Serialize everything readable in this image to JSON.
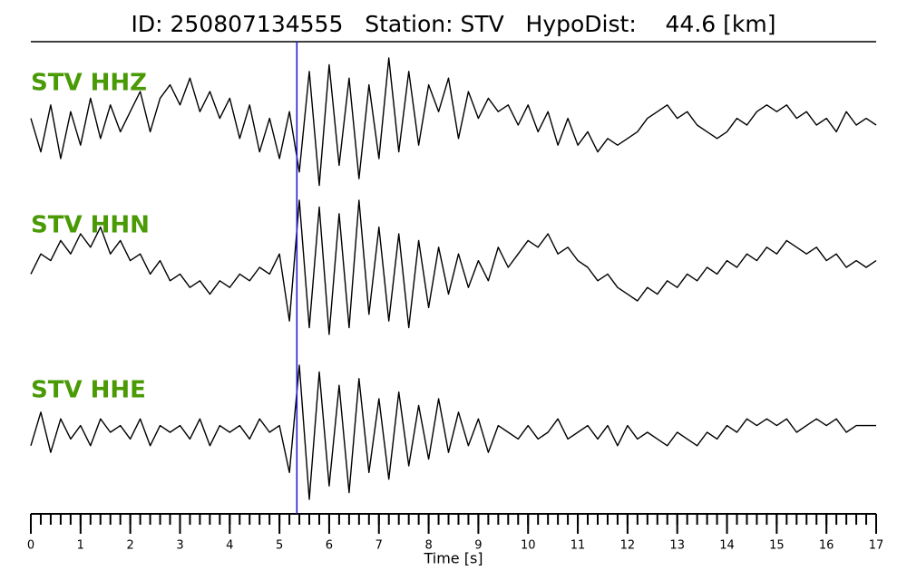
{
  "chart_data": {
    "type": "seismogram",
    "title": "ID: 250807134555   Station: STV   HypoDist:    44.6 [km]",
    "xlabel": "Time [s]",
    "xlim": [
      0,
      17
    ],
    "xticks": [
      0,
      1,
      2,
      3,
      4,
      5,
      6,
      7,
      8,
      9,
      10,
      11,
      12,
      13,
      14,
      15,
      16,
      17
    ],
    "minor_xticks": [
      0,
      0.2,
      0.4,
      0.6,
      0.8,
      1,
      1.2,
      1.4,
      1.6,
      1.8,
      2,
      2.2,
      2.4,
      2.6,
      2.8,
      3,
      3.2,
      3.4,
      3.6,
      3.8,
      4,
      4.2,
      4.4,
      4.6,
      4.8,
      5,
      5.2,
      5.4,
      5.6,
      5.8,
      6,
      6.2,
      6.4,
      6.6,
      6.8,
      7,
      7.2,
      7.4,
      7.6,
      7.8,
      8,
      8.2,
      8.4,
      8.6,
      8.8,
      9,
      9.2,
      9.4,
      9.6,
      9.8,
      10,
      10.2,
      10.4,
      10.6,
      10.8,
      11,
      11.2,
      11.4,
      11.6,
      11.8,
      12,
      12.2,
      12.4,
      12.6,
      12.8,
      13,
      13.2,
      13.4,
      13.6,
      13.8,
      14,
      14.2,
      14.4,
      14.6,
      14.8,
      15,
      15.2,
      15.4,
      15.6,
      15.8,
      16,
      16.2,
      16.4,
      16.6,
      16.8,
      17
    ],
    "pick_time": 5.35,
    "pick_color": "#1f1fd6",
    "label_color": "#4a9a06",
    "ylim": [
      -1,
      1
    ],
    "x": [
      0,
      0.2,
      0.4,
      0.6,
      0.8,
      1,
      1.2,
      1.4,
      1.6,
      1.8,
      2,
      2.2,
      2.4,
      2.6,
      2.8,
      3,
      3.2,
      3.4,
      3.6,
      3.8,
      4,
      4.2,
      4.4,
      4.6,
      4.8,
      5,
      5.2,
      5.4,
      5.6,
      5.8,
      6,
      6.2,
      6.4,
      6.6,
      6.8,
      7,
      7.2,
      7.4,
      7.6,
      7.8,
      8,
      8.2,
      8.4,
      8.6,
      8.8,
      9,
      9.2,
      9.4,
      9.6,
      9.8,
      10,
      10.2,
      10.4,
      10.6,
      10.8,
      11,
      11.2,
      11.4,
      11.6,
      11.8,
      12,
      12.2,
      12.4,
      12.6,
      12.8,
      13,
      13.2,
      13.4,
      13.6,
      13.8,
      14,
      14.2,
      14.4,
      14.6,
      14.8,
      15,
      15.2,
      15.4,
      15.6,
      15.8,
      16,
      16.2,
      16.4,
      16.6,
      16.8,
      17
    ],
    "series": [
      {
        "name": "STV HHZ",
        "color": "#000000",
        "values": [
          0.1,
          -0.4,
          0.3,
          -0.5,
          0.2,
          -0.3,
          0.4,
          -0.2,
          0.3,
          -0.1,
          0.2,
          0.5,
          -0.1,
          0.4,
          0.6,
          0.3,
          0.7,
          0.2,
          0.5,
          0.1,
          0.4,
          -0.2,
          0.3,
          -0.4,
          0.1,
          -0.5,
          0.2,
          -0.7,
          0.8,
          -0.9,
          0.9,
          -0.6,
          0.7,
          -0.8,
          0.6,
          -0.5,
          1.0,
          -0.4,
          0.8,
          -0.3,
          0.6,
          0.2,
          0.7,
          -0.2,
          0.5,
          0.1,
          0.4,
          0.2,
          0.3,
          0.0,
          0.3,
          -0.1,
          0.2,
          -0.3,
          0.1,
          -0.3,
          -0.1,
          -0.4,
          -0.2,
          -0.3,
          -0.2,
          -0.1,
          0.1,
          0.2,
          0.3,
          0.1,
          0.2,
          0.0,
          -0.1,
          -0.2,
          -0.1,
          0.1,
          0.0,
          0.2,
          0.3,
          0.2,
          0.3,
          0.1,
          0.2,
          0.0,
          0.1,
          -0.1,
          0.2,
          0.0,
          0.1,
          0.0
        ]
      },
      {
        "name": "STV HHN",
        "color": "#000000",
        "values": [
          -0.1,
          0.2,
          0.1,
          0.4,
          0.2,
          0.5,
          0.3,
          0.6,
          0.2,
          0.4,
          0.1,
          0.2,
          -0.1,
          0.1,
          -0.2,
          -0.1,
          -0.3,
          -0.2,
          -0.4,
          -0.2,
          -0.3,
          -0.1,
          -0.2,
          0.0,
          -0.1,
          0.2,
          -0.8,
          1.0,
          -0.9,
          0.9,
          -1.0,
          0.8,
          -0.9,
          1.0,
          -0.7,
          0.6,
          -0.8,
          0.5,
          -0.9,
          0.4,
          -0.6,
          0.3,
          -0.4,
          0.2,
          -0.3,
          0.1,
          -0.2,
          0.3,
          0.0,
          0.2,
          0.4,
          0.3,
          0.5,
          0.2,
          0.3,
          0.1,
          0.0,
          -0.2,
          -0.1,
          -0.3,
          -0.4,
          -0.5,
          -0.3,
          -0.4,
          -0.2,
          -0.3,
          -0.1,
          -0.2,
          0.0,
          -0.1,
          0.1,
          0.0,
          0.2,
          0.1,
          0.3,
          0.2,
          0.4,
          0.3,
          0.2,
          0.3,
          0.1,
          0.2,
          0.0,
          0.1,
          0.0,
          0.1
        ]
      },
      {
        "name": "STV HHE",
        "color": "#000000",
        "values": [
          -0.2,
          0.3,
          -0.3,
          0.2,
          -0.1,
          0.1,
          -0.2,
          0.2,
          0.0,
          0.1,
          -0.1,
          0.2,
          -0.2,
          0.1,
          0.0,
          0.1,
          -0.1,
          0.2,
          -0.2,
          0.1,
          0.0,
          0.1,
          -0.1,
          0.2,
          0.0,
          0.1,
          -0.6,
          1.0,
          -1.0,
          0.9,
          -0.8,
          0.7,
          -0.9,
          0.8,
          -0.6,
          0.5,
          -0.7,
          0.6,
          -0.5,
          0.4,
          -0.4,
          0.5,
          -0.3,
          0.3,
          -0.2,
          0.2,
          -0.3,
          0.1,
          0.0,
          -0.1,
          0.1,
          -0.1,
          0.0,
          0.2,
          -0.1,
          0.0,
          0.1,
          -0.1,
          0.1,
          -0.2,
          0.1,
          -0.1,
          0.0,
          -0.1,
          -0.2,
          0.0,
          -0.1,
          -0.2,
          0.0,
          -0.1,
          0.1,
          0.0,
          0.2,
          0.1,
          0.2,
          0.1,
          0.2,
          0.0,
          0.1,
          0.2,
          0.1,
          0.2,
          0.0,
          0.1,
          0.1,
          0.1
        ]
      }
    ]
  }
}
